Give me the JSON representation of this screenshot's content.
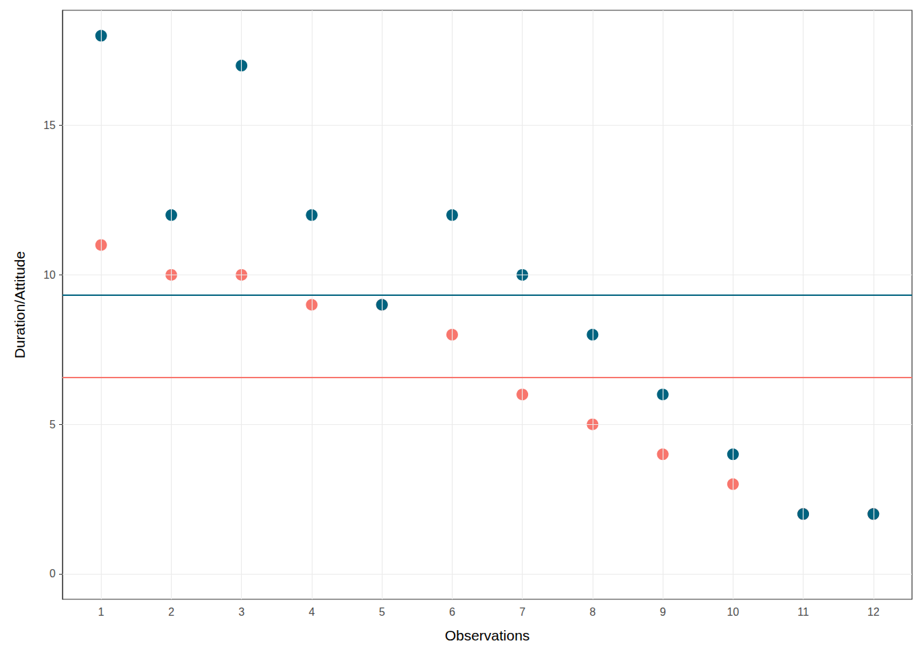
{
  "chart_data": {
    "type": "scatter",
    "x": [
      1,
      2,
      3,
      4,
      5,
      6,
      7,
      8,
      9,
      10,
      11,
      12
    ],
    "series": [
      {
        "color": "#F8766D",
        "values": [
          11,
          10,
          10,
          9,
          9,
          8,
          6,
          5,
          4,
          3,
          2,
          2
        ],
        "mean": 6.58
      },
      {
        "color": "#00637F",
        "values": [
          18,
          12,
          17,
          12,
          9,
          12,
          10,
          8,
          6,
          4,
          2,
          2
        ],
        "mean": 9.33
      }
    ],
    "xlim": [
      0.45,
      12.55
    ],
    "xticks": [
      1,
      2,
      3,
      4,
      5,
      6,
      7,
      8,
      9,
      10,
      11,
      12
    ],
    "ylim": [
      -0.85,
      18.85
    ],
    "yticks": [
      0,
      5,
      10,
      15
    ],
    "xlabel": "Observations",
    "ylabel": "Duration/Attitude",
    "grid": true
  }
}
